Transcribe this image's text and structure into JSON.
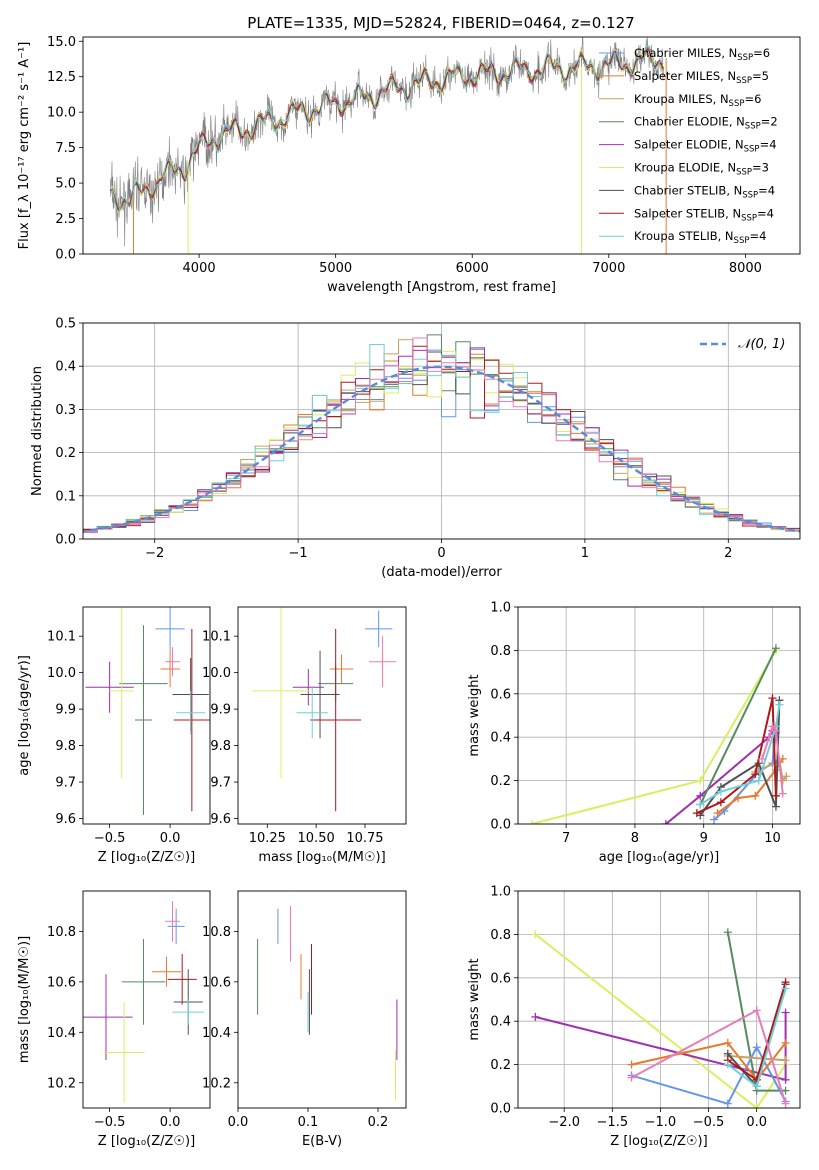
{
  "title": "PLATE=1335, MJD=52824, FIBERID=0464, z=0.127",
  "colors": {
    "chabrier_miles": "#6495ed",
    "salpeter_miles": "#e8792f",
    "kroupa_miles": "#c8a060",
    "chabrier_elodie": "#558b5d",
    "salpeter_elodie": "#a030b0",
    "kroupa_elodie": "#d8f060",
    "chabrier_stelib": "#505050",
    "salpeter_stelib": "#b01818",
    "kroupa_stelib": "#70d0d8",
    "pink": "#e87cb8",
    "data": "#808080"
  },
  "chart_data": [
    {
      "id": "spectrum",
      "type": "line",
      "xlabel": "wavelength [Angstrom, rest frame]",
      "ylabel": "Flux [f_λ 10⁻¹⁷ erg cm⁻² s⁻¹ A⁻¹]",
      "xlim": [
        3150,
        8400
      ],
      "ylim": [
        0,
        15.3
      ],
      "xticks": [
        "4000",
        "5000",
        "6000",
        "7000",
        "8000"
      ],
      "yticks": [
        "0.0",
        "2.5",
        "5.0",
        "7.5",
        "10.0",
        "12.5",
        "15.0"
      ],
      "legend": [
        {
          "base": "Chabrier MILES, N",
          "sub": "SSP",
          "tail": "=6",
          "color": "chabrier_miles"
        },
        {
          "base": "Salpeter MILES, N",
          "sub": "SSP",
          "tail": "=5",
          "color": "salpeter_miles"
        },
        {
          "base": "Kroupa MILES, N",
          "sub": "SSP",
          "tail": "=6",
          "color": "kroupa_miles"
        },
        {
          "base": "Chabrier ELODIE, N",
          "sub": "SSP",
          "tail": "=2",
          "color": "chabrier_elodie"
        },
        {
          "base": "Salpeter ELODIE, N",
          "sub": "SSP",
          "tail": "=4",
          "color": "salpeter_elodie"
        },
        {
          "base": "Kroupa ELODIE, N",
          "sub": "SSP",
          "tail": "=3",
          "color": "kroupa_elodie"
        },
        {
          "base": "Chabrier STELIB, N",
          "sub": "SSP",
          "tail": "=4",
          "color": "chabrier_stelib"
        },
        {
          "base": "Salpeter STELIB, N",
          "sub": "SSP",
          "tail": "=4",
          "color": "salpeter_stelib"
        },
        {
          "base": "Kroupa STELIB, N",
          "sub": "SSP",
          "tail": "=4",
          "color": "kroupa_stelib"
        }
      ],
      "continuum": {
        "x": [
          3350,
          3500,
          3600,
          3750,
          3900,
          4000,
          4100,
          4250,
          4400,
          4600,
          4800,
          5000,
          5200,
          5400,
          5600,
          5800,
          6000,
          6200,
          6400,
          6600,
          6800,
          7000,
          7200,
          7400
        ],
        "y": [
          4.1,
          3.8,
          4.5,
          5.5,
          6.2,
          7.4,
          8.2,
          8.6,
          9.0,
          9.6,
          10.2,
          10.6,
          11.0,
          11.6,
          12.0,
          12.4,
          12.6,
          12.8,
          13.0,
          13.1,
          13.2,
          13.3,
          13.5,
          13.8
        ]
      }
    },
    {
      "id": "residuals",
      "type": "histogram",
      "xlabel": "(data-model)/error",
      "ylabel": "Normed distribution",
      "xlim": [
        -2.5,
        2.5
      ],
      "ylim": [
        0,
        0.5
      ],
      "xticks": [
        "−2",
        "−1",
        "0",
        "1",
        "2"
      ],
      "yticks": [
        "0.0",
        "0.1",
        "0.2",
        "0.3",
        "0.4",
        "0.5"
      ],
      "legend_label": "𝒩(0, 1)",
      "reference_color": "#5b8bd8"
    },
    {
      "id": "age_vs_Z",
      "type": "scatter",
      "xlabel": "Z [log₁₀(Z/Z☉)]",
      "ylabel": "age  [log₁₀(age/yr)]",
      "xlim": [
        -0.72,
        0.33
      ],
      "ylim": [
        9.585,
        10.18
      ],
      "xticks": [
        "−0.5",
        "0.0"
      ],
      "yticks": [
        "9.6",
        "9.7",
        "9.8",
        "9.9",
        "10.0",
        "10.1"
      ],
      "points": [
        {
          "x": 0.0,
          "y": 10.12,
          "xerr": 0.12,
          "yerr": 0.06,
          "color": "chabrier_miles"
        },
        {
          "x": 0.0,
          "y": 10.01,
          "xerr": 0.08,
          "yerr": 0.05,
          "color": "salpeter_miles"
        },
        {
          "x": 0.02,
          "y": 10.03,
          "xerr": 0.06,
          "yerr": 0.04,
          "color": "pink"
        },
        {
          "x": -0.22,
          "y": 9.97,
          "xerr": 0.2,
          "yerr": 0.05,
          "color": "chabrier_elodie"
        },
        {
          "x": -0.5,
          "y": 9.96,
          "xerr": 0.2,
          "yerr": 0.07,
          "color": "salpeter_elodie"
        },
        {
          "x": -0.4,
          "y": 9.95,
          "xerr": 0.1,
          "yerr": 0.24,
          "color": "kroupa_elodie"
        },
        {
          "x": -0.22,
          "y": 9.87,
          "xerr": 0.07,
          "yerr": 0.26,
          "color": "chabrier_elodie"
        },
        {
          "x": 0.17,
          "y": 9.94,
          "xerr": 0.15,
          "yerr": 0.1,
          "color": "chabrier_stelib"
        },
        {
          "x": 0.18,
          "y": 9.87,
          "xerr": 0.15,
          "yerr": 0.25,
          "color": "salpeter_stelib"
        },
        {
          "x": 0.17,
          "y": 9.89,
          "xerr": 0.12,
          "yerr": 0.06,
          "color": "kroupa_stelib"
        }
      ]
    },
    {
      "id": "age_vs_mass",
      "type": "scatter",
      "xlabel": "mass [log₁₀(M/M☉)]",
      "xlim": [
        10.1,
        10.96
      ],
      "ylim": [
        9.585,
        10.18
      ],
      "xticks": [
        "10.25",
        "10.50",
        "10.75"
      ],
      "yticks": [
        "9.6",
        "9.7",
        "9.8",
        "9.9",
        "10.0",
        "10.1"
      ],
      "points": [
        {
          "x": 10.82,
          "y": 10.12,
          "xerr": 0.07,
          "yerr": 0.05,
          "color": "chabrier_miles"
        },
        {
          "x": 10.63,
          "y": 10.01,
          "xerr": 0.06,
          "yerr": 0.04,
          "color": "salpeter_miles"
        },
        {
          "x": 10.84,
          "y": 10.03,
          "xerr": 0.07,
          "yerr": 0.07,
          "color": "pink"
        },
        {
          "x": 10.6,
          "y": 9.97,
          "xerr": 0.09,
          "yerr": 0.05,
          "color": "chabrier_elodie"
        },
        {
          "x": 10.46,
          "y": 9.96,
          "xerr": 0.08,
          "yerr": 0.05,
          "color": "salpeter_elodie"
        },
        {
          "x": 10.32,
          "y": 9.95,
          "xerr": 0.15,
          "yerr": 0.24,
          "color": "kroupa_elodie"
        },
        {
          "x": 10.52,
          "y": 9.94,
          "xerr": 0.1,
          "yerr": 0.12,
          "color": "chabrier_stelib"
        },
        {
          "x": 10.6,
          "y": 9.87,
          "xerr": 0.13,
          "yerr": 0.25,
          "color": "salpeter_stelib"
        },
        {
          "x": 10.48,
          "y": 9.89,
          "xerr": 0.08,
          "yerr": 0.07,
          "color": "kroupa_stelib"
        }
      ]
    },
    {
      "id": "weight_vs_age",
      "type": "line",
      "xlabel": "age  [log₁₀(age/yr)]",
      "ylabel": "mass weight",
      "xlim": [
        6.3,
        10.4
      ],
      "ylim": [
        0,
        1.0
      ],
      "xticks": [
        "7",
        "8",
        "9",
        "10"
      ],
      "yticks": [
        "0.0",
        "0.2",
        "0.4",
        "0.6",
        "0.8",
        "1.0"
      ],
      "series": [
        {
          "color": "kroupa_elodie",
          "x": [
            6.5,
            8.95,
            10.05
          ],
          "y": [
            0.0,
            0.2,
            0.8
          ]
        },
        {
          "color": "salpeter_elodie",
          "x": [
            8.45,
            8.95,
            9.95,
            10.0
          ],
          "y": [
            0.0,
            0.13,
            0.4,
            0.43
          ]
        },
        {
          "color": "chabrier_elodie",
          "x": [
            8.95,
            10.05
          ],
          "y": [
            0.09,
            0.81
          ]
        },
        {
          "color": "chabrier_miles",
          "x": [
            9.15,
            9.3,
            9.8,
            10.0,
            10.05
          ],
          "y": [
            0.02,
            0.06,
            0.24,
            0.28,
            0.42
          ]
        },
        {
          "color": "salpeter_miles",
          "x": [
            9.2,
            9.5,
            9.75,
            10.05,
            10.15
          ],
          "y": [
            0.05,
            0.12,
            0.13,
            0.25,
            0.3
          ]
        },
        {
          "color": "kroupa_miles",
          "x": [
            9.75,
            10.1,
            10.15,
            10.2
          ],
          "y": [
            0.24,
            0.29,
            0.2,
            0.22
          ]
        },
        {
          "color": "chabrier_stelib",
          "x": [
            8.95,
            9.25,
            9.8,
            10.05,
            10.1
          ],
          "y": [
            0.04,
            0.17,
            0.28,
            0.08,
            0.57
          ]
        },
        {
          "color": "salpeter_stelib",
          "x": [
            8.9,
            9.25,
            9.75,
            10.0,
            10.05
          ],
          "y": [
            0.05,
            0.1,
            0.23,
            0.58,
            0.13
          ]
        },
        {
          "color": "kroupa_stelib",
          "x": [
            8.95,
            9.25,
            9.8,
            10.05,
            10.1
          ],
          "y": [
            0.09,
            0.15,
            0.2,
            0.45,
            0.55
          ]
        },
        {
          "color": "pink",
          "x": [
            9.85,
            10.0,
            10.05,
            10.15
          ],
          "y": [
            0.3,
            0.45,
            0.43,
            0.14
          ]
        }
      ]
    },
    {
      "id": "mass_vs_Z",
      "type": "scatter",
      "xlabel": "Z [log₁₀(Z/Z☉)]",
      "ylabel": "mass [log₁₀(M/M☉)]",
      "xlim": [
        -0.72,
        0.33
      ],
      "ylim": [
        10.1,
        10.96
      ],
      "xticks": [
        "−0.5",
        "0.0"
      ],
      "yticks": [
        "10.2",
        "10.4",
        "10.6",
        "10.8"
      ],
      "points": [
        {
          "x": 0.05,
          "y": 10.82,
          "xerr": 0.07,
          "yerr": 0.07,
          "color": "chabrier_miles"
        },
        {
          "x": 0.02,
          "y": 10.84,
          "xerr": 0.06,
          "yerr": 0.08,
          "color": "pink"
        },
        {
          "x": -0.03,
          "y": 10.64,
          "xerr": 0.12,
          "yerr": 0.06,
          "color": "salpeter_miles"
        },
        {
          "x": -0.22,
          "y": 10.6,
          "xerr": 0.18,
          "yerr": 0.17,
          "color": "chabrier_elodie"
        },
        {
          "x": 0.1,
          "y": 10.61,
          "xerr": 0.12,
          "yerr": 0.1,
          "color": "salpeter_stelib"
        },
        {
          "x": 0.15,
          "y": 10.52,
          "xerr": 0.12,
          "yerr": 0.13,
          "color": "chabrier_stelib"
        },
        {
          "x": 0.15,
          "y": 10.48,
          "xerr": 0.13,
          "yerr": 0.05,
          "color": "kroupa_stelib"
        },
        {
          "x": -0.53,
          "y": 10.46,
          "xerr": 0.22,
          "yerr": 0.17,
          "color": "salpeter_elodie"
        },
        {
          "x": -0.38,
          "y": 10.32,
          "xerr": 0.17,
          "yerr": 0.2,
          "color": "kroupa_elodie"
        }
      ]
    },
    {
      "id": "mass_vs_ebv",
      "type": "scatter",
      "xlabel": "E(B-V)",
      "xlim": [
        0.0,
        0.24
      ],
      "ylim": [
        10.1,
        10.96
      ],
      "xticks": [
        "0.0",
        "0.1",
        "0.2"
      ],
      "yticks": [
        "10.2",
        "10.4",
        "10.6",
        "10.8"
      ],
      "points": [
        {
          "x": 0.057,
          "y": 10.82,
          "yerr": 0.07,
          "color": "chabrier_miles"
        },
        {
          "x": 0.075,
          "y": 10.79,
          "yerr": 0.11,
          "color": "pink"
        },
        {
          "x": 0.09,
          "y": 10.62,
          "yerr": 0.09,
          "color": "salpeter_miles"
        },
        {
          "x": 0.028,
          "y": 10.62,
          "yerr": 0.15,
          "color": "chabrier_elodie"
        },
        {
          "x": 0.105,
          "y": 10.61,
          "yerr": 0.14,
          "color": "salpeter_stelib"
        },
        {
          "x": 0.102,
          "y": 10.52,
          "yerr": 0.13,
          "color": "chabrier_stelib"
        },
        {
          "x": 0.1,
          "y": 10.48,
          "yerr": 0.08,
          "color": "kroupa_stelib"
        },
        {
          "x": 0.227,
          "y": 10.41,
          "yerr": 0.12,
          "color": "salpeter_elodie"
        },
        {
          "x": 0.225,
          "y": 10.23,
          "yerr": 0.1,
          "color": "kroupa_elodie"
        }
      ]
    },
    {
      "id": "weight_vs_Z",
      "type": "line",
      "xlabel": "Z [log₁₀(Z/Z☉)]",
      "ylabel": "mass weight",
      "xlim": [
        -2.48,
        0.45
      ],
      "ylim": [
        0,
        1.0
      ],
      "xticks": [
        "−2.0",
        "−1.5",
        "−1.0",
        "−0.5",
        "0.0"
      ],
      "yticks": [
        "0.0",
        "0.2",
        "0.4",
        "0.6",
        "0.8",
        "1.0"
      ],
      "series": [
        {
          "color": "kroupa_elodie",
          "x": [
            -2.3,
            0.0,
            0.3
          ],
          "y": [
            0.8,
            0.0,
            0.2
          ]
        },
        {
          "color": "salpeter_elodie",
          "x": [
            -2.3,
            0.3,
            0.3
          ],
          "y": [
            0.42,
            0.13,
            0.44
          ]
        },
        {
          "color": "chabrier_elodie",
          "x": [
            -0.3,
            0.0,
            0.3
          ],
          "y": [
            0.81,
            0.08,
            0.08
          ]
        },
        {
          "color": "chabrier_miles",
          "x": [
            -1.3,
            -0.3,
            0.0,
            0.3
          ],
          "y": [
            0.15,
            0.02,
            0.28,
            0.03
          ]
        },
        {
          "color": "salpeter_miles",
          "x": [
            -1.3,
            -0.3,
            0.0,
            0.3
          ],
          "y": [
            0.2,
            0.3,
            0.13,
            0.3
          ]
        },
        {
          "color": "kroupa_miles",
          "x": [
            -0.3,
            0.3
          ],
          "y": [
            0.24,
            0.22
          ]
        },
        {
          "color": "chabrier_stelib",
          "x": [
            -0.3,
            0.0,
            0.3
          ],
          "y": [
            0.25,
            0.1,
            0.57
          ]
        },
        {
          "color": "salpeter_stelib",
          "x": [
            -0.3,
            0.0,
            0.3
          ],
          "y": [
            0.22,
            0.13,
            0.58
          ]
        },
        {
          "color": "kroupa_stelib",
          "x": [
            -0.3,
            0.0,
            0.3
          ],
          "y": [
            0.2,
            0.1,
            0.55
          ]
        },
        {
          "color": "pink",
          "x": [
            -1.3,
            0.0,
            0.3
          ],
          "y": [
            0.14,
            0.45,
            0.02
          ]
        }
      ]
    }
  ]
}
